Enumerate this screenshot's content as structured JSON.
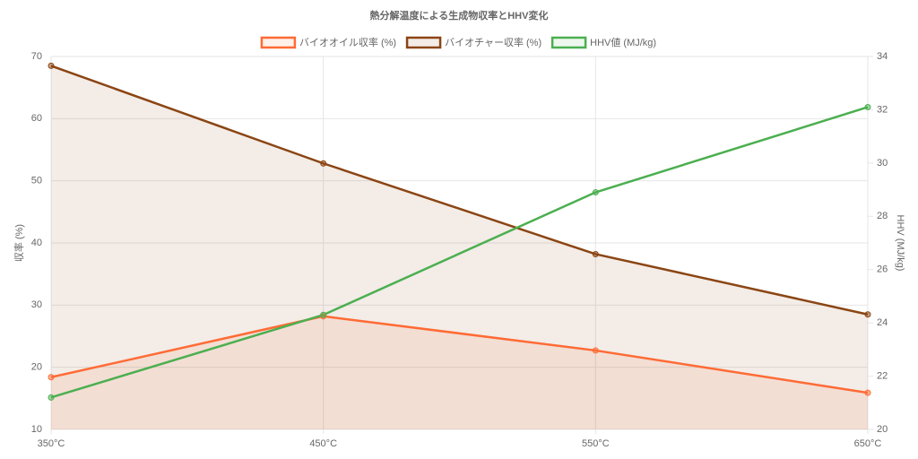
{
  "chart_data": {
    "type": "line",
    "title": "熱分解温度による生成物収率とHHV変化",
    "categories": [
      "350°C",
      "450°C",
      "550°C",
      "650°C"
    ],
    "y_label": "収率 (%)",
    "y2_label": "HHV (MJ/kg)",
    "ylim": [
      10,
      70
    ],
    "yticks": [
      10,
      20,
      30,
      40,
      50,
      60,
      70
    ],
    "y2lim": [
      20,
      34
    ],
    "y2ticks": [
      20,
      22,
      24,
      26,
      28,
      30,
      32,
      34
    ],
    "grid": true,
    "legend": "top",
    "series": [
      {
        "name": "バイオオイル収率 (%)",
        "color": "#ff6b35",
        "fill": true,
        "values": [
          18.4,
          28.2,
          22.7,
          15.9
        ]
      },
      {
        "name": "バイオチャー収率 (%)",
        "color": "#8b4513",
        "fill": true,
        "values": [
          68.5,
          52.8,
          38.2,
          28.5
        ]
      },
      {
        "name": "HHV値 (MJ/kg)",
        "color": "#4caf50",
        "fill": false,
        "axis": "y2",
        "values": [
          21.2,
          24.3,
          28.9,
          32.1
        ]
      }
    ]
  }
}
